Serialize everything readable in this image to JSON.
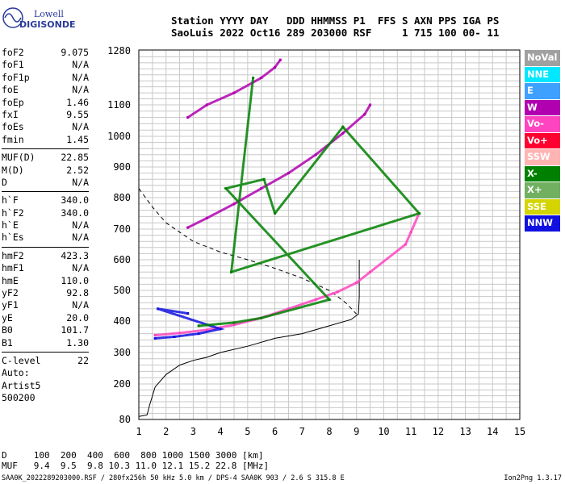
{
  "logo": {
    "line1": "Lowell",
    "line2": "DIGISONDE"
  },
  "header": {
    "line1": "Station YYYY DAY   DDD HHMMSS P1  FFS S AXN PPS IGA PS",
    "line2": "SaoLuis 2022 Oct16 289 203000 RSF     1 715 100 00- 11"
  },
  "params": [
    {
      "label": "foF2",
      "value": "9.075"
    },
    {
      "label": "foF1",
      "value": "N/A"
    },
    {
      "label": "foF1p",
      "value": "N/A"
    },
    {
      "label": "foE",
      "value": "N/A"
    },
    {
      "label": "foEp",
      "value": "1.46"
    },
    {
      "label": "fxI",
      "value": "9.55"
    },
    {
      "label": "foEs",
      "value": "N/A"
    },
    {
      "label": "fmin",
      "value": "1.45"
    },
    {
      "label": "MUF(D)",
      "value": "22.85"
    },
    {
      "label": "M(D)",
      "value": "2.52"
    },
    {
      "label": "D",
      "value": "N/A"
    },
    {
      "label": "h`F",
      "value": "340.0"
    },
    {
      "label": "h`F2",
      "value": "340.0"
    },
    {
      "label": "h`E",
      "value": "N/A"
    },
    {
      "label": "h`Es",
      "value": "N/A"
    },
    {
      "label": "hmF2",
      "value": "423.3"
    },
    {
      "label": "hmF1",
      "value": "N/A"
    },
    {
      "label": "hmE",
      "value": "110.0"
    },
    {
      "label": "yF2",
      "value": "92.8"
    },
    {
      "label": "yF1",
      "value": "N/A"
    },
    {
      "label": "yE",
      "value": "20.0"
    },
    {
      "label": "B0",
      "value": "101.7"
    },
    {
      "label": "B1",
      "value": "1.30"
    },
    {
      "label": "C-level",
      "value": "22"
    }
  ],
  "notes": [
    "Auto:",
    "Artist5",
    "500200"
  ],
  "legend": [
    {
      "label": "NoVal",
      "color": "#a0a0a0"
    },
    {
      "label": "NNE",
      "color": "#00e8ff"
    },
    {
      "label": "E",
      "color": "#3ea0ff"
    },
    {
      "label": "W",
      "color": "#b000b0"
    },
    {
      "label": "Vo-",
      "color": "#ff44c0"
    },
    {
      "label": "Vo+",
      "color": "#ff0030"
    },
    {
      "label": "SSW",
      "color": "#ffb4b4"
    },
    {
      "label": "X-",
      "color": "#008000"
    },
    {
      "label": "X+",
      "color": "#70b060"
    },
    {
      "label": "SSE",
      "color": "#d4d400"
    },
    {
      "label": "NNW",
      "color": "#1010e0"
    }
  ],
  "muf_table": {
    "row1": "D     100  200  400  600  800 1000 1500 3000 [km]",
    "row2": "MUF   9.4  9.5  9.8 10.3 11.0 12.1 15.2 22.8 [MHz]"
  },
  "footer": "SAA0K_2022289203000.RSF / 280fx256h 50 kHz 5.0 km / DPS-4 SAA0K 903 / 2.6 S 315.8 E",
  "version": "Ion2Png 1.3.17",
  "chart_data": {
    "type": "scatter",
    "title": "",
    "xlabel": "",
    "ylabel": "",
    "xlim": [
      1,
      15
    ],
    "ylim": [
      80,
      1280
    ],
    "x_ticks": [
      1,
      2,
      3,
      4,
      5,
      6,
      7,
      8,
      9,
      10,
      11,
      12,
      13,
      14,
      15
    ],
    "y_ticks": [
      80,
      200,
      300,
      400,
      500,
      600,
      700,
      800,
      900,
      1000,
      1100,
      1280
    ],
    "grid": true,
    "series": [
      {
        "color": "#ff44c0",
        "points": [
          [
            1.6,
            355
          ],
          [
            2.5,
            362
          ],
          [
            3.5,
            372
          ],
          [
            4.5,
            388
          ],
          [
            5.5,
            410
          ],
          [
            6.5,
            440
          ],
          [
            7.5,
            470
          ],
          [
            8.3,
            495
          ],
          [
            9.0,
            525
          ],
          [
            9.5,
            560
          ],
          [
            10.8,
            650
          ],
          [
            11.0,
            690
          ],
          [
            11.3,
            750
          ]
        ]
      },
      {
        "color": "#b000b0",
        "points": [
          [
            2.8,
            705
          ],
          [
            3.5,
            735
          ],
          [
            4.5,
            780
          ],
          [
            5.5,
            830
          ],
          [
            6.5,
            880
          ],
          [
            7.5,
            940
          ],
          [
            8.5,
            1010
          ],
          [
            9.3,
            1070
          ],
          [
            9.5,
            1100
          ]
        ]
      },
      {
        "color": "#b000b0",
        "points": [
          [
            2.8,
            1060
          ],
          [
            3.5,
            1100
          ],
          [
            4.5,
            1140
          ],
          [
            5.5,
            1190
          ],
          [
            6.0,
            1225
          ],
          [
            6.2,
            1250
          ]
        ]
      },
      {
        "color": "#1010e0",
        "points": [
          [
            1.6,
            345
          ],
          [
            2.3,
            350
          ],
          [
            3.2,
            360
          ],
          [
            4.0,
            375
          ],
          [
            1.7,
            440
          ],
          [
            2.8,
            425
          ]
        ]
      },
      {
        "color": "#008000",
        "points": [
          [
            3.2,
            385
          ],
          [
            4.5,
            395
          ],
          [
            5.5,
            410
          ],
          [
            8.0,
            470
          ],
          [
            4.2,
            830
          ],
          [
            5.6,
            860
          ],
          [
            6.0,
            750
          ],
          [
            8.5,
            1030
          ],
          [
            11.3,
            750
          ],
          [
            4.4,
            560
          ],
          [
            5.2,
            1190
          ]
        ]
      }
    ],
    "curves": [
      {
        "name": "",
        "style": "dashed",
        "points": [
          [
            1.0,
            830
          ],
          [
            1.5,
            770
          ],
          [
            2.0,
            720
          ],
          [
            2.5,
            690
          ],
          [
            3.0,
            660
          ],
          [
            4.0,
            625
          ],
          [
            5.0,
            600
          ],
          [
            6.0,
            572
          ],
          [
            7.0,
            540
          ],
          [
            8.0,
            500
          ],
          [
            8.6,
            460
          ],
          [
            9.0,
            423
          ]
        ]
      },
      {
        "name": "",
        "style": "solid",
        "points": [
          [
            1.0,
            90
          ],
          [
            1.3,
            95
          ],
          [
            1.4,
            130
          ],
          [
            1.6,
            190
          ],
          [
            2.0,
            230
          ],
          [
            2.5,
            260
          ],
          [
            3.0,
            275
          ],
          [
            3.5,
            285
          ],
          [
            4.0,
            300
          ],
          [
            5.0,
            320
          ],
          [
            6.0,
            345
          ],
          [
            7.0,
            360
          ],
          [
            8.0,
            385
          ],
          [
            8.8,
            405
          ],
          [
            9.07,
            423
          ],
          [
            9.1,
            480
          ],
          [
            9.1,
            560
          ],
          [
            9.1,
            600
          ]
        ]
      }
    ]
  }
}
